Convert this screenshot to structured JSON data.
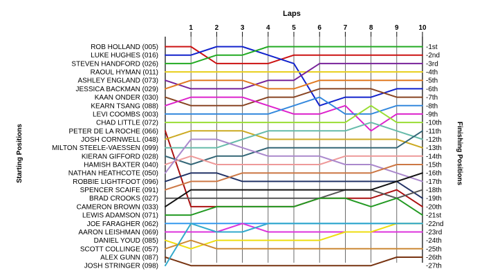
{
  "chart_data": {
    "type": "line",
    "title": "Laps",
    "ylabel_left": "Starting Positions",
    "ylabel_right": "Finishing Positions",
    "x": [
      0,
      1,
      2,
      3,
      4,
      5,
      6,
      7,
      8,
      9,
      10
    ],
    "x_tick_labels": [
      "1",
      "2",
      "3",
      "4",
      "5",
      "6",
      "7",
      "8",
      "9",
      "10"
    ],
    "y_range": [
      1,
      27
    ],
    "y_inverted": true,
    "grid": "vertical",
    "finishing_labels": [
      "1st",
      "2nd",
      "3rd",
      "4th",
      "5th",
      "6th",
      "7th",
      "8th",
      "9th",
      "10th",
      "11th",
      "12th",
      "13th",
      "14th",
      "15th",
      "16th",
      "17th",
      "18th",
      "19th",
      "20th",
      "21st",
      "22nd",
      "23rd",
      "24th",
      "25th",
      "26th",
      "27th"
    ],
    "series": [
      {
        "name": "ROB HOLLAND (005)",
        "color": "#cc1111",
        "positions": [
          1,
          1,
          3,
          3,
          3,
          2,
          2,
          2,
          2,
          2,
          2
        ]
      },
      {
        "name": "LUKE HUGHES (016)",
        "color": "#1122cc",
        "positions": [
          2,
          2,
          1,
          1,
          2,
          3,
          8,
          7,
          7,
          6,
          6
        ]
      },
      {
        "name": "STEVEN HANDFORD (026)",
        "color": "#22aa22",
        "positions": [
          3,
          3,
          2,
          2,
          1,
          1,
          1,
          1,
          1,
          1,
          1
        ]
      },
      {
        "name": "RAOUL HYMAN (011)",
        "color": "#e8d020",
        "positions": [
          4,
          4,
          4,
          4,
          4,
          4,
          4,
          4,
          4,
          4,
          4
        ]
      },
      {
        "name": "ASHLEY ENGLAND (073)",
        "color": "#772299",
        "positions": [
          5,
          6,
          6,
          6,
          5,
          5,
          3,
          3,
          3,
          3,
          3
        ]
      },
      {
        "name": "JESSICA BACKMAN (029)",
        "color": "#e07820",
        "positions": [
          6,
          5,
          5,
          5,
          6,
          6,
          5,
          5,
          5,
          5,
          5
        ]
      },
      {
        "name": "KAAN ONDER (030)",
        "color": "#884422",
        "positions": [
          7,
          8,
          8,
          8,
          7,
          7,
          6,
          6,
          6,
          7,
          7
        ]
      },
      {
        "name": "KEARN TSANG (088)",
        "color": "#dd22cc",
        "positions": [
          8,
          7,
          7,
          7,
          8,
          9,
          9,
          8,
          11,
          9,
          9
        ]
      },
      {
        "name": "LEVI COOMBS (003)",
        "color": "#3388dd",
        "positions": [
          9,
          9,
          9,
          9,
          9,
          8,
          7,
          9,
          9,
          8,
          8
        ]
      },
      {
        "name": "CHAD LITTLE (072)",
        "color": "#99dd33",
        "positions": [
          10,
          10,
          10,
          10,
          10,
          10,
          10,
          10,
          8,
          10,
          10
        ]
      },
      {
        "name": "PETER DE LA ROCHE (066)",
        "color": "#aa1111",
        "positions": [
          11,
          20,
          20,
          20,
          20,
          20,
          19,
          19,
          19,
          18,
          20
        ]
      },
      {
        "name": "JOSH CORNWELL (048)",
        "color": "#ccaa22",
        "positions": [
          12,
          11,
          11,
          11,
          12,
          12,
          12,
          12,
          12,
          12,
          13
        ]
      },
      {
        "name": "MILTON STEELE-VAESSEN (099)",
        "color": "#66bbaa",
        "positions": [
          13,
          13,
          13,
          12,
          11,
          11,
          11,
          11,
          10,
          11,
          12
        ]
      },
      {
        "name": "KIERAN GIFFORD (028)",
        "color": "#336677",
        "positions": [
          14,
          15,
          14,
          14,
          13,
          13,
          13,
          13,
          13,
          13,
          11
        ]
      },
      {
        "name": "HAMISH BAXTER (040)",
        "color": "#ee9999",
        "positions": [
          15,
          14,
          15,
          15,
          15,
          15,
          15,
          14,
          14,
          14,
          14
        ]
      },
      {
        "name": "NATHAN HEATHCOTE (050)",
        "color": "#aa88cc",
        "positions": [
          16,
          12,
          12,
          13,
          14,
          14,
          14,
          15,
          15,
          16,
          17
        ]
      },
      {
        "name": "ROBBIE LIGHTFOOT (096)",
        "color": "#223366",
        "positions": [
          17,
          16,
          16,
          17,
          17,
          17,
          17,
          17,
          17,
          17,
          19
        ]
      },
      {
        "name": "SPENCER SCAIFE (091)",
        "color": "#cc7744",
        "positions": [
          18,
          17,
          17,
          16,
          16,
          16,
          16,
          16,
          16,
          15,
          15
        ]
      },
      {
        "name": "BRAD CROOKS (027)",
        "color": "#555555",
        "positions": [
          19,
          19,
          19,
          19,
          19,
          19,
          19,
          18,
          18,
          19,
          18
        ]
      },
      {
        "name": "CAMERON BROWN (033)",
        "color": "#111111",
        "positions": [
          20,
          18,
          18,
          18,
          18,
          18,
          18,
          18,
          18,
          17,
          16
        ]
      },
      {
        "name": "LEWIS ADAMSON (071)",
        "color": "#229922",
        "positions": [
          21,
          21,
          20,
          20,
          20,
          20,
          19,
          19,
          20,
          19,
          21
        ]
      },
      {
        "name": "JOE FARAGHER (062)",
        "color": "#3399ee",
        "positions": [
          22,
          22,
          22,
          22,
          22,
          22,
          22,
          22,
          22,
          22,
          22
        ]
      },
      {
        "name": "AARON LEISHMAN (069)",
        "color": "#dd33dd",
        "positions": [
          23,
          23,
          23,
          22,
          23,
          23,
          23,
          23,
          23,
          23,
          23
        ]
      },
      {
        "name": "DANIEL YOUD (085)",
        "color": "#eedd11",
        "positions": [
          24,
          25,
          24,
          24,
          24,
          24,
          24,
          23,
          23,
          22,
          22
        ]
      },
      {
        "name": "SCOTT COLLINGE (057)",
        "color": "#cc8833",
        "positions": [
          25,
          24,
          25,
          25,
          25,
          25,
          25,
          25,
          25,
          25,
          25
        ]
      },
      {
        "name": "ALEX GUNN (087)",
        "color": "#773311",
        "positions": [
          26,
          27,
          27,
          27,
          27,
          27,
          27,
          27,
          27,
          26,
          26
        ]
      },
      {
        "name": "JOSH STRINGER (098)",
        "color": "#33aacc",
        "positions": [
          27,
          22,
          23,
          23,
          22,
          22,
          22,
          22,
          22,
          22,
          22
        ]
      }
    ]
  }
}
